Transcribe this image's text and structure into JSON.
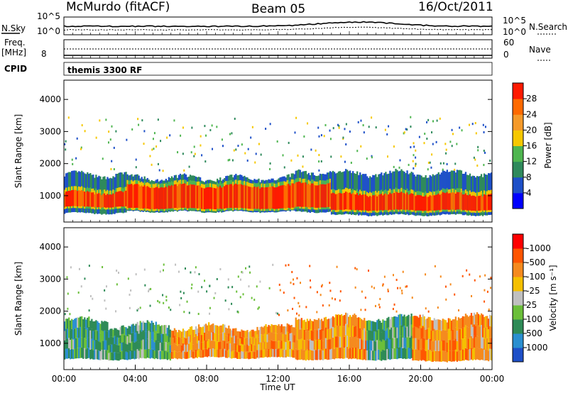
{
  "header": {
    "station": "McMurdo (fitACF)",
    "beam": "Beam 05",
    "date": "16/Oct/2011"
  },
  "noise_panel": {
    "left_label": "N.Sky",
    "right_label": "N.Search",
    "left_ticks": [
      "10^5",
      "10^0"
    ],
    "right_ticks": [
      "10^5",
      "10^0"
    ]
  },
  "freq_panel": {
    "left_label_line1": "Freq.",
    "left_label_line2": "[MHz]",
    "left_tick": "8",
    "right_label": "Nave",
    "right_ticks": [
      "60",
      "0"
    ]
  },
  "cpid_panel": {
    "label": "CPID",
    "value": "themis 3300 RF"
  },
  "chart_data": [
    {
      "type": "heatmap",
      "name": "power",
      "ylabel": "Slant Range [km]",
      "ylim": [
        180,
        4600
      ],
      "yticks": [
        1000,
        2000,
        3000,
        4000
      ],
      "colorbar": {
        "label": "Power [dB]",
        "ticks": [
          "4",
          "8",
          "12",
          "16",
          "20",
          "24",
          "28"
        ],
        "colors": [
          "#0000ff",
          "#1e50c8",
          "#2f8a5c",
          "#4fb650",
          "#f6c800",
          "#f59a2a",
          "#ff6a00",
          "#ff1a00"
        ]
      },
      "bands": [
        {
          "from_h": 0,
          "to_h": 3.5,
          "core_km": [
            650,
            1100
          ],
          "edge_km": [
            450,
            1650
          ]
        },
        {
          "from_h": 3.5,
          "to_h": 13,
          "core_km": [
            600,
            1300
          ],
          "edge_km": [
            500,
            1550
          ]
        },
        {
          "from_h": 13,
          "to_h": 15,
          "core_km": [
            650,
            1400
          ],
          "edge_km": [
            500,
            1750
          ]
        },
        {
          "from_h": 15,
          "to_h": 24,
          "core_km": [
            550,
            1050
          ],
          "edge_km": [
            400,
            1700
          ]
        }
      ]
    },
    {
      "type": "heatmap",
      "name": "velocity",
      "xlabel": "Time UT",
      "ylabel": "Slant Range [km]",
      "ylim": [
        180,
        4600
      ],
      "yticks": [
        1000,
        2000,
        3000,
        4000
      ],
      "xticks": [
        "00:00",
        "04:00",
        "08:00",
        "12:00",
        "16:00",
        "20:00",
        "00:00"
      ],
      "xlim_hours": [
        0,
        24
      ],
      "colorbar": {
        "label": "Velocity [m s⁻¹]",
        "ticks": [
          "1000",
          "500",
          "100",
          "25",
          "-25",
          "-100",
          "-500",
          "-1000"
        ],
        "colors": [
          "#1e50c8",
          "#2a8fd0",
          "#2e8b57",
          "#6bbf3a",
          "#c0c0c0",
          "#f5c000",
          "#f58a1e",
          "#ff5500",
          "#ff0000"
        ]
      },
      "segments": [
        {
          "from_h": 0,
          "to_h": 2.5,
          "velocity": "100 to 500",
          "km": [
            500,
            1700
          ]
        },
        {
          "from_h": 2.5,
          "to_h": 6,
          "velocity": "100 to 500",
          "km": [
            500,
            1550
          ]
        },
        {
          "from_h": 6,
          "to_h": 13,
          "velocity": "-100 to -500",
          "km": [
            550,
            1500
          ]
        },
        {
          "from_h": 13,
          "to_h": 17,
          "velocity": "-100 to -500",
          "km": [
            500,
            1800
          ]
        },
        {
          "from_h": 17,
          "to_h": 19.5,
          "velocity": "100 to 500",
          "km": [
            500,
            1800
          ]
        },
        {
          "from_h": 19.5,
          "to_h": 24,
          "velocity": "-100 to -500",
          "km": [
            450,
            1800
          ]
        }
      ]
    }
  ]
}
